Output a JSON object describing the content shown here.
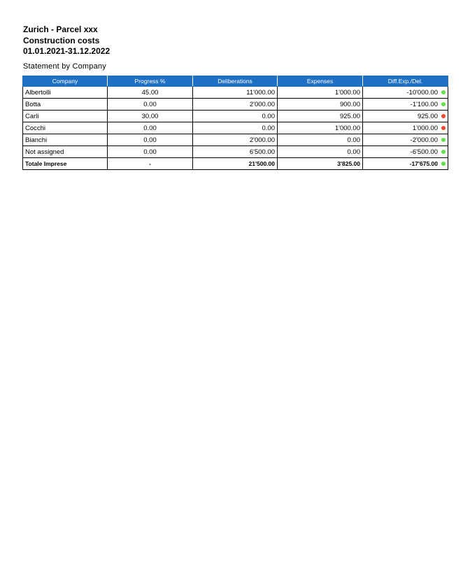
{
  "header": {
    "title_line1": "Zurich - Parcel xxx",
    "title_line2": "Construction costs",
    "title_line3": "01.01.2021-31.12.2022"
  },
  "subtitle": "Statement by Company",
  "table": {
    "columns": [
      "Company",
      "Progress %",
      "Deliberations",
      "Expenses",
      "Diff.Exp./Del."
    ],
    "rows": [
      {
        "company": "Albertolli",
        "progress": "45.00",
        "deliberations": "11'000.00",
        "expenses": "1'000.00",
        "diff": "-10'000.00",
        "status": "green"
      },
      {
        "company": "Botta",
        "progress": "0.00",
        "deliberations": "2'000.00",
        "expenses": "900.00",
        "diff": "-1'100.00",
        "status": "green"
      },
      {
        "company": "Carli",
        "progress": "30.00",
        "deliberations": "0.00",
        "expenses": "925.00",
        "diff": "925.00",
        "status": "red"
      },
      {
        "company": "Cocchi",
        "progress": "0.00",
        "deliberations": "0.00",
        "expenses": "1'000.00",
        "diff": "1'000.00",
        "status": "red"
      },
      {
        "company": "Bianchi",
        "progress": "0.00",
        "deliberations": "2'000.00",
        "expenses": "0.00",
        "diff": "-2'000.00",
        "status": "green"
      },
      {
        "company": "Not assigned",
        "progress": "0.00",
        "deliberations": "6'500.00",
        "expenses": "0.00",
        "diff": "-6'500.00",
        "status": "green"
      }
    ],
    "total": {
      "company": "Totale Imprese",
      "progress": "-",
      "deliberations": "21'500.00",
      "expenses": "3'825.00",
      "diff": "-17'675.00",
      "status": "green"
    }
  },
  "colors": {
    "header_bg": "#1f6fc5",
    "green": "#5fe04a",
    "red": "#f0452b"
  }
}
